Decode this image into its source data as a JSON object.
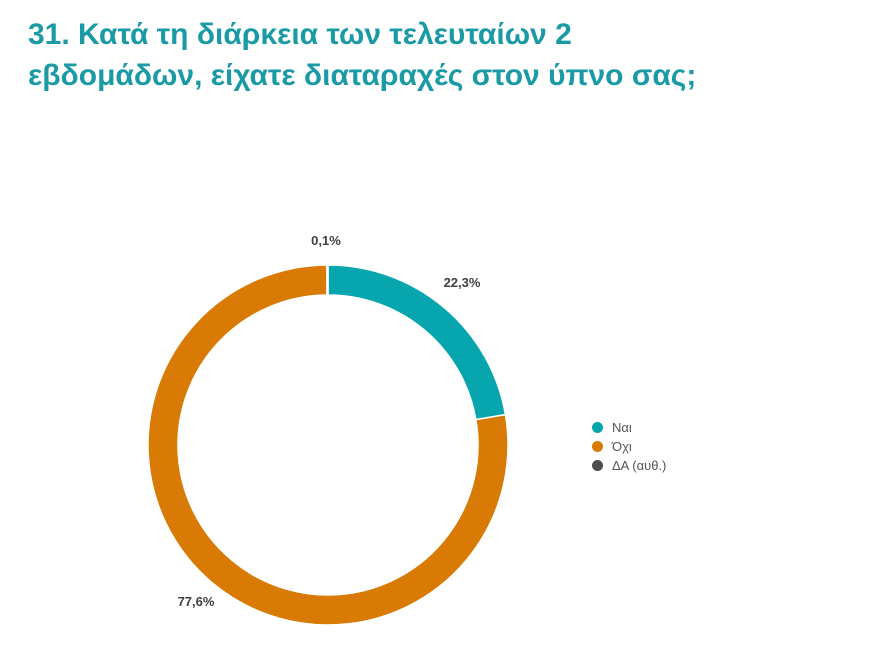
{
  "title_lines": [
    "31. Κατά τη διάρκεια των τελευταίων 2",
    "εβδομάδων, είχατε διαταραχές στον ύπνο σας;"
  ],
  "chart_data": {
    "type": "pie",
    "donut": true,
    "categories": [
      "Ναι",
      "Όχι",
      "ΔΑ (αυθ.)"
    ],
    "values": [
      22.3,
      77.6,
      0.1
    ],
    "data_labels": [
      "22,3%",
      "77,6%",
      "0,1%"
    ],
    "colors": [
      "#07a5ae",
      "#d97a04",
      "#4d4d4d"
    ],
    "legend_position": "right"
  }
}
